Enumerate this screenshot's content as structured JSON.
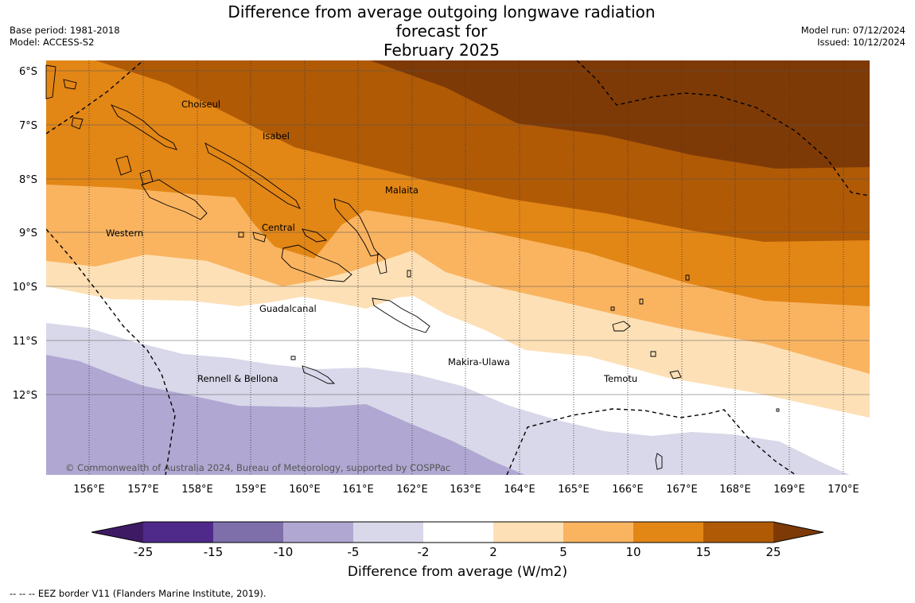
{
  "title_line1": "Difference from average outgoing longwave radiation forecast for",
  "title_line2": "February 2025",
  "base_period": "Base period: 1981-2018",
  "model": "Model: ACCESS-S2",
  "model_run": "Model run: 07/12/2024",
  "issued": "Issued: 10/12/2024",
  "copyright": "© Commonwealth of Australia 2024, Bureau of Meteorology, supported by COSPPac",
  "lon_labels": [
    "156°E",
    "157°E",
    "158°E",
    "159°E",
    "160°E",
    "161°E",
    "162°E",
    "163°E",
    "164°E",
    "165°E",
    "166°E",
    "167°E",
    "168°E",
    "169°E",
    "170°E"
  ],
  "lat_labels": [
    "6°S",
    "7°S",
    "8°S",
    "9°S",
    "10°S",
    "11°S",
    "12°S"
  ],
  "place_labels": [
    "Choiseul",
    "Isabel",
    "Malaita",
    "Western",
    "Central",
    "Guadalcanal",
    "Makira-Ulawa",
    "Rennell & Bellona",
    "Temotu"
  ],
  "colorbar": {
    "title": "Difference from average (W/m2)",
    "ticks": [
      "-25",
      "-15",
      "-10",
      "-5",
      "-2",
      "2",
      "5",
      "10",
      "15",
      "25"
    ],
    "colors": [
      "#3f1a64",
      "#4f2a8a",
      "#7e6fab",
      "#b0a8d2",
      "#d8d8ea",
      "#ffffff",
      "#fde0b6",
      "#fab460",
      "#e28616",
      "#b05a06",
      "#7e3a06"
    ]
  },
  "footnote": "--  --  -- EEZ border V11 (Flanders Marine Institute, 2019)."
}
